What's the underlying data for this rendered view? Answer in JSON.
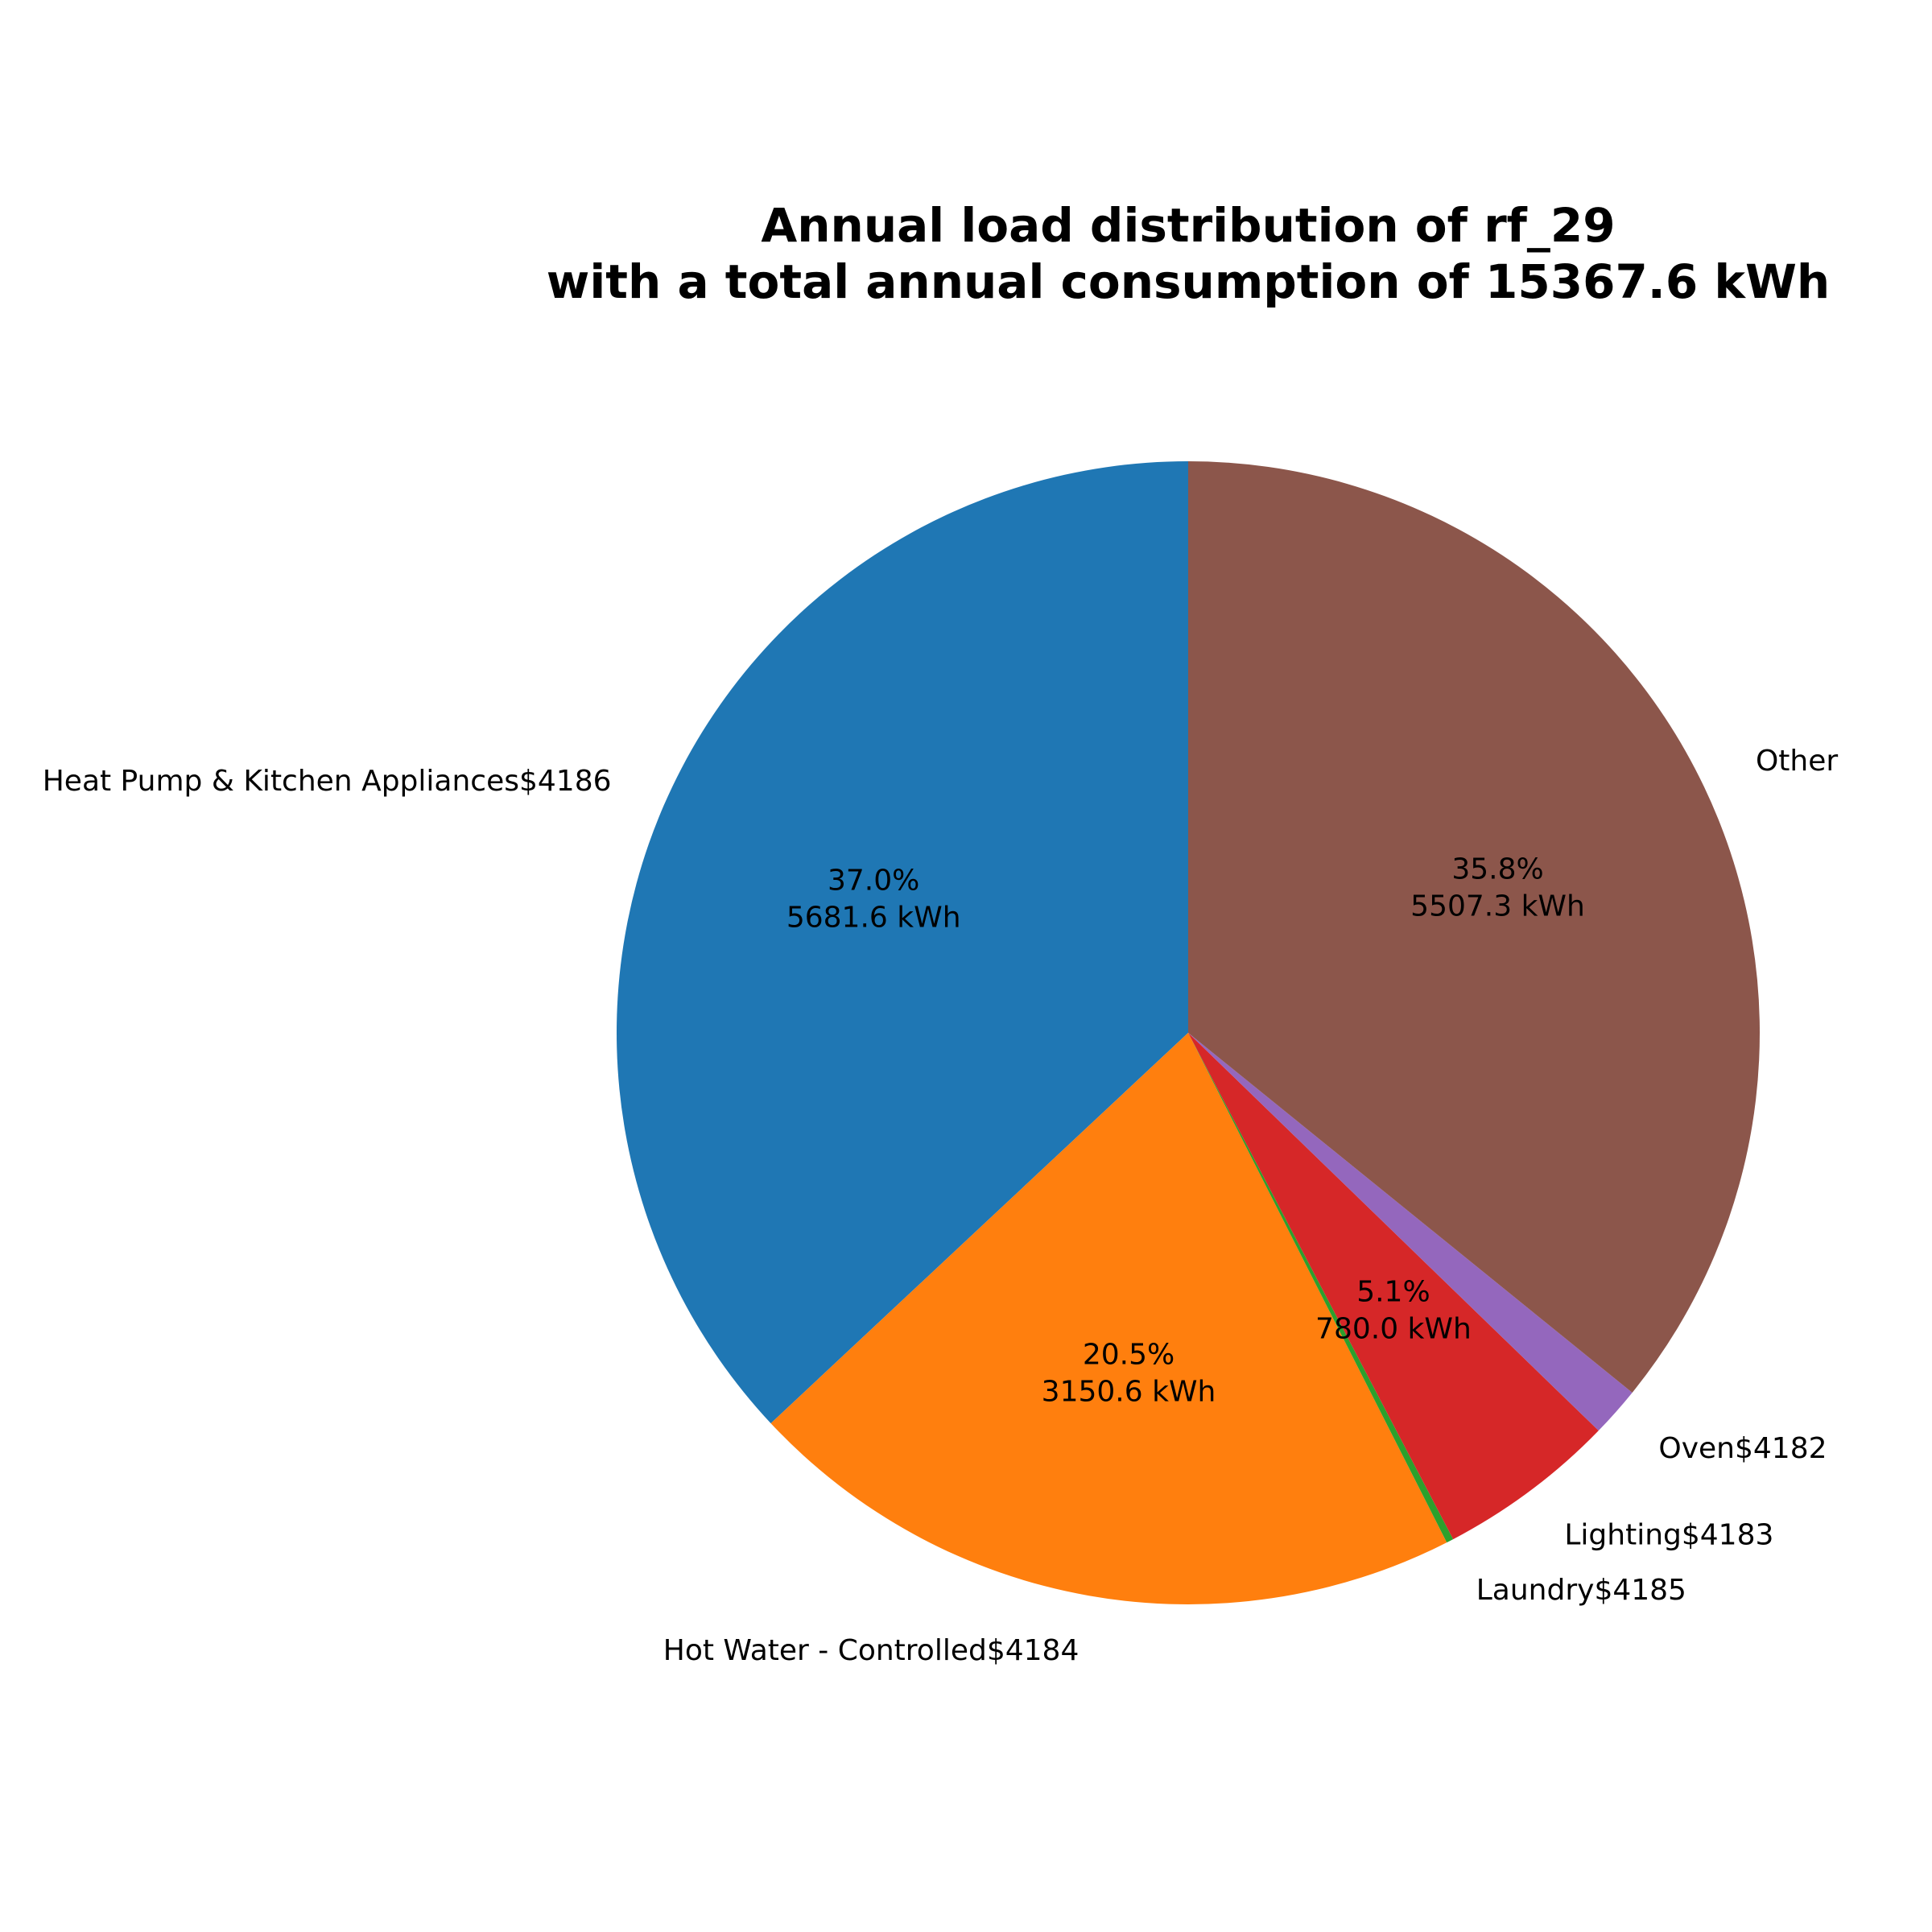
{
  "chart_data": {
    "type": "pie",
    "title_line1": "Annual load distribution of rf_29",
    "title_line2": "with a total annual consumption of 15367.6 kWh",
    "start_angle_deg": 90,
    "direction": "counterclockwise",
    "slices": [
      {
        "label": "Heat Pump & Kitchen Appliances$4186",
        "value": 5681.6,
        "pct_text": "37.0%",
        "value_text": "5681.6 kWh",
        "color": "#1f77b4"
      },
      {
        "label": "Hot Water - Controlled$4184",
        "value": 3150.6,
        "pct_text": "20.5%",
        "value_text": "3150.6 kWh",
        "color": "#ff7f0e"
      },
      {
        "label": "Laundry$4185",
        "value": 30.7,
        "pct_text": "",
        "value_text": "",
        "color": "#2ca02c"
      },
      {
        "label": "Lighting$4183",
        "value": 780.0,
        "pct_text": "5.1%",
        "value_text": "780.0 kWh",
        "color": "#d62728"
      },
      {
        "label": "Oven$4182",
        "value": 217.4,
        "pct_text": "",
        "value_text": "",
        "color": "#9467bd"
      },
      {
        "label": "Other",
        "value": 5507.3,
        "pct_text": "35.8%",
        "value_text": "5507.3 kWh",
        "color": "#8c564b"
      }
    ]
  }
}
